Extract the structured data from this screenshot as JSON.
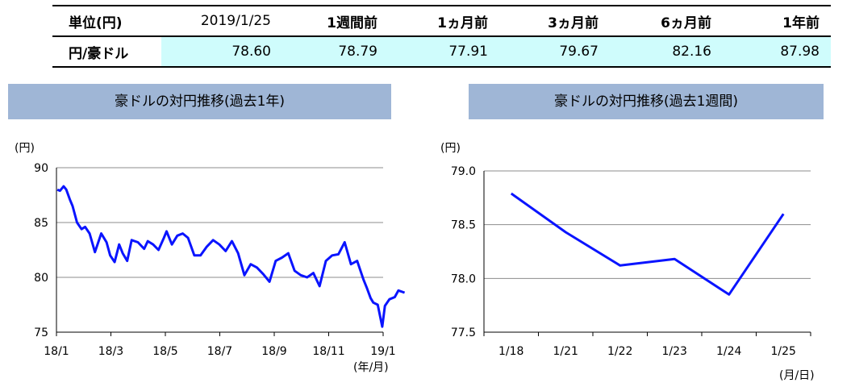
{
  "table": {
    "unit_header": "単位(円)",
    "date_header": "2019/1/25",
    "columns": [
      "1週間前",
      "1ヵ月前",
      "3ヵ月前",
      "6ヵ月前",
      "1年前"
    ],
    "row_label": "円/豪ドル",
    "values": [
      "78.60",
      "78.79",
      "77.91",
      "79.67",
      "82.16",
      "87.98"
    ],
    "highlight_color": "#cffcfc"
  },
  "chart_data": [
    {
      "type": "line",
      "title": "豪ドルの対円推移(過去1年)",
      "y_unit": "(円)",
      "x_unit": "(年/月)",
      "xlabel": "",
      "ylabel": "",
      "ylim": [
        75,
        90
      ],
      "yticks": [
        "90",
        "85",
        "80",
        "75"
      ],
      "xticks": [
        "18/1",
        "18/3",
        "18/5",
        "18/7",
        "18/9",
        "18/11",
        "19/1"
      ],
      "grid": true,
      "line_color": "#0a14ff",
      "series": [
        {
          "x": [
            "2018-01-02",
            "2018-01-05",
            "2018-01-09",
            "2018-01-12",
            "2018-01-16",
            "2018-01-19",
            "2018-01-24",
            "2018-01-29",
            "2018-02-02",
            "2018-02-07",
            "2018-02-13",
            "2018-02-20",
            "2018-02-26",
            "2018-03-02",
            "2018-03-07",
            "2018-03-12",
            "2018-03-16",
            "2018-03-21",
            "2018-03-26",
            "2018-04-02",
            "2018-04-09",
            "2018-04-13",
            "2018-04-19",
            "2018-04-25",
            "2018-05-01",
            "2018-05-04",
            "2018-05-10",
            "2018-05-16",
            "2018-05-22",
            "2018-05-28",
            "2018-06-04",
            "2018-06-11",
            "2018-06-18",
            "2018-06-25",
            "2018-07-02",
            "2018-07-09",
            "2018-07-16",
            "2018-07-23",
            "2018-07-30",
            "2018-08-06",
            "2018-08-13",
            "2018-08-20",
            "2018-08-27",
            "2018-09-03",
            "2018-09-10",
            "2018-09-17",
            "2018-09-24",
            "2018-10-01",
            "2018-10-08",
            "2018-10-15",
            "2018-10-22",
            "2018-10-29",
            "2018-11-05",
            "2018-11-12",
            "2018-11-19",
            "2018-11-26",
            "2018-12-03",
            "2018-12-10",
            "2018-12-14",
            "2018-12-18",
            "2018-12-21",
            "2018-12-26",
            "2018-12-31",
            "2019-01-03",
            "2019-01-08",
            "2019-01-14",
            "2019-01-18",
            "2019-01-25"
          ],
          "y": [
            88.0,
            87.9,
            88.3,
            88.0,
            87.1,
            86.5,
            85.0,
            84.4,
            84.6,
            84.0,
            82.3,
            84.0,
            83.2,
            82.0,
            81.4,
            83.0,
            82.2,
            81.5,
            83.4,
            83.2,
            82.6,
            83.3,
            83.0,
            82.5,
            83.6,
            84.2,
            83.0,
            83.8,
            84.0,
            83.6,
            82.0,
            82.0,
            82.8,
            83.4,
            83.0,
            82.4,
            83.3,
            82.2,
            80.2,
            81.2,
            80.9,
            80.3,
            79.6,
            81.5,
            81.8,
            82.2,
            80.6,
            80.2,
            80.0,
            80.4,
            79.2,
            81.5,
            82.0,
            82.1,
            83.2,
            81.2,
            81.5,
            79.8,
            79.0,
            78.1,
            77.7,
            77.5,
            75.5,
            77.4,
            78.0,
            78.2,
            78.8,
            78.6
          ]
        }
      ]
    },
    {
      "type": "line",
      "title": "豪ドルの対円推移(過去1週間)",
      "y_unit": "(円)",
      "x_unit": "(月/日)",
      "xlabel": "",
      "ylabel": "",
      "ylim": [
        77.5,
        79.0
      ],
      "yticks": [
        "79.0",
        "78.5",
        "78.0",
        "77.5"
      ],
      "categories": [
        "1/18",
        "1/21",
        "1/22",
        "1/23",
        "1/24",
        "1/25"
      ],
      "grid": true,
      "line_color": "#0a14ff",
      "series": [
        {
          "values": [
            78.79,
            78.43,
            78.12,
            78.18,
            77.85,
            78.6
          ]
        }
      ]
    }
  ]
}
